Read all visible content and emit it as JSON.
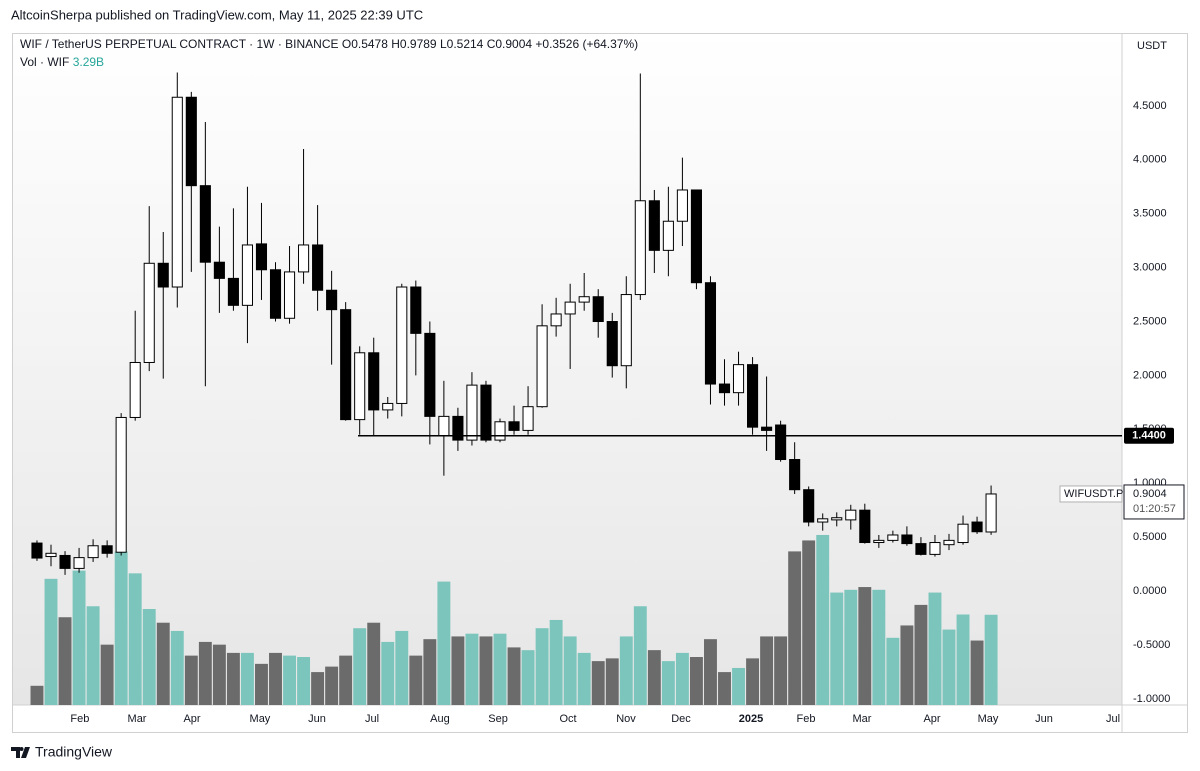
{
  "header": {
    "publisher": "AltcoinSherpa published on TradingView.com, May 11, 2025 22:39 UTC"
  },
  "chart_data": {
    "type": "candlestick",
    "title": "WIF / TetherUS PERPETUAL CONTRACT · 1W · BINANCE",
    "ohlc_letters": [
      "O",
      "H",
      "L",
      "C"
    ],
    "change": "+0.3526 (+64.37%)",
    "symbol_badge": "WIFUSDT.P",
    "countdown": "01:20:57",
    "y_axis_unit": "USDT",
    "candles": {
      "open": [
        0.445,
        0.32,
        0.33,
        0.21,
        0.31,
        0.42,
        0.36,
        1.61,
        2.12,
        3.04,
        2.82,
        4.58,
        3.76,
        3.05,
        2.9,
        2.65,
        3.22,
        2.98,
        2.53,
        2.96,
        3.21,
        2.79,
        2.61,
        1.59,
        2.21,
        1.68,
        1.74,
        2.82,
        2.39,
        1.44,
        1.62,
        1.4,
        1.91,
        1.4,
        1.57,
        1.49,
        1.71,
        2.46,
        2.57,
        2.68,
        2.73,
        2.5,
        2.09,
        2.75,
        3.62,
        3.16,
        3.43,
        3.72,
        2.86,
        1.92,
        1.84,
        2.1,
        1.52,
        1.54,
        1.22,
        0.94,
        0.64,
        0.66,
        0.66,
        0.75,
        0.45,
        0.47,
        0.52,
        0.44,
        0.34,
        0.43,
        0.45,
        0.64,
        0.5478
      ],
      "high": [
        0.47,
        0.43,
        0.37,
        0.4,
        0.48,
        0.47,
        1.65,
        2.6,
        3.57,
        3.33,
        4.81,
        4.63,
        4.35,
        3.38,
        3.55,
        3.75,
        3.6,
        3.05,
        3.2,
        4.1,
        3.58,
        2.97,
        2.68,
        2.27,
        2.35,
        1.8,
        2.85,
        2.88,
        2.5,
        1.95,
        1.7,
        2.03,
        1.95,
        1.6,
        1.72,
        1.9,
        2.66,
        2.72,
        2.85,
        2.95,
        2.8,
        2.58,
        2.92,
        4.8,
        3.72,
        3.75,
        4.02,
        3.72,
        2.92,
        2.15,
        2.22,
        2.17,
        1.99,
        1.58,
        1.38,
        0.97,
        0.72,
        0.73,
        0.8,
        0.81,
        0.52,
        0.56,
        0.6,
        0.5,
        0.52,
        0.53,
        0.7,
        0.69,
        0.9789
      ],
      "low": [
        0.28,
        0.23,
        0.15,
        0.17,
        0.27,
        0.31,
        0.33,
        1.58,
        2.04,
        1.97,
        2.63,
        2.96,
        1.9,
        2.58,
        2.6,
        2.3,
        2.7,
        2.5,
        2.48,
        2.85,
        2.6,
        2.1,
        1.58,
        1.45,
        1.44,
        1.6,
        1.62,
        2.0,
        1.36,
        1.07,
        1.3,
        1.35,
        1.38,
        1.38,
        1.45,
        1.45,
        1.7,
        2.36,
        2.06,
        2.6,
        2.35,
        1.98,
        1.88,
        2.7,
        2.95,
        2.92,
        3.2,
        2.8,
        1.73,
        1.72,
        1.72,
        1.45,
        1.3,
        1.2,
        0.9,
        0.6,
        0.56,
        0.6,
        0.57,
        0.44,
        0.4,
        0.45,
        0.42,
        0.33,
        0.32,
        0.38,
        0.43,
        0.53,
        0.5214
      ],
      "close": [
        0.306,
        0.35,
        0.21,
        0.31,
        0.42,
        0.35,
        1.61,
        2.12,
        3.04,
        2.82,
        4.58,
        3.76,
        3.05,
        2.9,
        2.65,
        3.21,
        2.98,
        2.53,
        2.96,
        3.21,
        2.79,
        2.61,
        1.59,
        2.21,
        1.68,
        1.74,
        2.82,
        2.39,
        1.62,
        1.62,
        1.4,
        1.91,
        1.4,
        1.57,
        1.49,
        1.71,
        2.46,
        2.57,
        2.68,
        2.73,
        2.5,
        2.09,
        2.75,
        3.62,
        3.16,
        3.43,
        3.72,
        2.86,
        1.92,
        1.84,
        2.1,
        1.52,
        1.49,
        1.22,
        0.94,
        0.64,
        0.67,
        0.68,
        0.75,
        0.45,
        0.47,
        0.52,
        0.44,
        0.34,
        0.45,
        0.47,
        0.62,
        0.55,
        0.9004
      ],
      "up_color": "#ffffff",
      "down_color": "#000000",
      "edge_color": "#000000"
    },
    "volume": {
      "label": "Vol · WIF",
      "value_label": "3.29B",
      "values": [
        0.7,
        4.6,
        3.2,
        4.9,
        3.6,
        2.2,
        5.6,
        4.8,
        3.5,
        3.0,
        2.7,
        1.8,
        2.3,
        2.2,
        1.9,
        1.9,
        1.5,
        1.9,
        1.8,
        1.75,
        1.2,
        1.4,
        1.8,
        2.8,
        3.0,
        2.3,
        2.7,
        1.8,
        2.4,
        4.5,
        2.5,
        2.6,
        2.5,
        2.6,
        2.1,
        2.0,
        2.8,
        3.1,
        2.5,
        1.9,
        1.6,
        1.7,
        2.5,
        3.6,
        2.0,
        1.6,
        1.9,
        1.75,
        2.4,
        1.2,
        1.35,
        1.7,
        2.5,
        2.5,
        5.6,
        6.0,
        6.2,
        4.1,
        4.2,
        4.3,
        4.2,
        2.45,
        2.9,
        3.65,
        4.1,
        2.75,
        3.3,
        2.35,
        3.29
      ],
      "up_color": "#7cc5bc",
      "down_color": "#6b6b6b",
      "ylim": [
        0,
        24.5
      ]
    },
    "xlim": [
      -1.78,
      77.33
    ],
    "xticks": [
      {
        "value": 3.06,
        "label": "Feb"
      },
      {
        "value": 7.13,
        "label": "Mar"
      },
      {
        "value": 11.05,
        "label": "Apr"
      },
      {
        "value": 15.89,
        "label": "May"
      },
      {
        "value": 19.96,
        "label": "Jun"
      },
      {
        "value": 23.88,
        "label": "Jul"
      },
      {
        "value": 28.72,
        "label": "Aug"
      },
      {
        "value": 32.86,
        "label": "Sep"
      },
      {
        "value": 37.85,
        "label": "Oct"
      },
      {
        "value": 41.98,
        "label": "Nov"
      },
      {
        "value": 45.9,
        "label": "Dec"
      },
      {
        "value": 50.89,
        "label": "2025"
      },
      {
        "value": 54.81,
        "label": "Feb"
      },
      {
        "value": 58.8,
        "label": "Mar"
      },
      {
        "value": 63.79,
        "label": "Apr"
      },
      {
        "value": 67.78,
        "label": "May"
      },
      {
        "value": 71.77,
        "label": "Jun"
      },
      {
        "value": 76.69,
        "label": "Jul"
      }
    ],
    "ylim": [
      -1.057,
      5.176
    ],
    "yticks": [
      {
        "value": 4.5,
        "label": "4.5000"
      },
      {
        "value": 4,
        "label": "4.0000"
      },
      {
        "value": 3.5,
        "label": "3.5000"
      },
      {
        "value": 3,
        "label": "3.0000"
      },
      {
        "value": 2.5,
        "label": "2.5000"
      },
      {
        "value": 2,
        "label": "2.0000"
      },
      {
        "value": 1.5,
        "label": "1.5000"
      },
      {
        "value": 1,
        "label": "1.0000"
      },
      {
        "value": 0.5,
        "label": "0.5000"
      },
      {
        "value": 0,
        "label": "0.0000"
      },
      {
        "value": -0.5,
        "label": "-0.5000"
      },
      {
        "value": -1,
        "label": "-1.0000"
      }
    ],
    "hline": {
      "value": 1.44,
      "label": "1.4400",
      "start": 22.88,
      "color": "#000000"
    }
  },
  "footer": {
    "brand": "TradingView"
  }
}
